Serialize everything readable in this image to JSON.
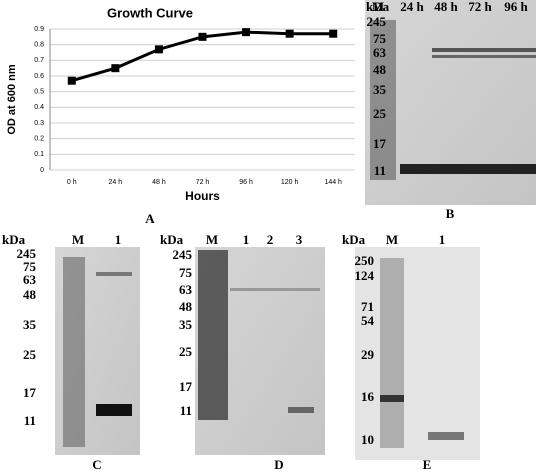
{
  "chart_data": {
    "type": "line",
    "title": "Growth Curve",
    "x_label": "Hours",
    "y_label": "OD at 600 nm",
    "categories": [
      "0 h",
      "24 h",
      "48 h",
      "72 h",
      "96 h",
      "120 h",
      "144 h"
    ],
    "values": [
      0.57,
      0.65,
      0.77,
      0.85,
      0.88,
      0.87,
      0.87
    ],
    "color": "#000000",
    "ylim": [
      0,
      0.9
    ],
    "yticks": [
      0,
      0.1,
      0.2,
      0.3,
      0.4,
      0.5,
      0.6,
      0.7,
      0.8,
      0.9
    ],
    "grid": true,
    "panel_label": "A"
  },
  "panels": [
    {
      "letter": "B",
      "unit": "kDa",
      "lanes": [
        "M",
        "24 h",
        "48 h",
        "72 h",
        "96 h"
      ],
      "markers": [
        245,
        75,
        63,
        48,
        35,
        25,
        17,
        11
      ]
    },
    {
      "letter": "C",
      "unit": "kDa",
      "lanes": [
        "M",
        "1"
      ],
      "markers": [
        245,
        75,
        63,
        48,
        35,
        25,
        17,
        11
      ]
    },
    {
      "letter": "D",
      "unit": "kDa",
      "lanes": [
        "M",
        "1",
        "2",
        "3"
      ],
      "markers": [
        245,
        75,
        63,
        48,
        35,
        25,
        17,
        11
      ]
    },
    {
      "letter": "E",
      "unit": "kDa",
      "lanes": [
        "M",
        "1"
      ],
      "markers": [
        250,
        124,
        71,
        54,
        29,
        16,
        10
      ]
    }
  ]
}
